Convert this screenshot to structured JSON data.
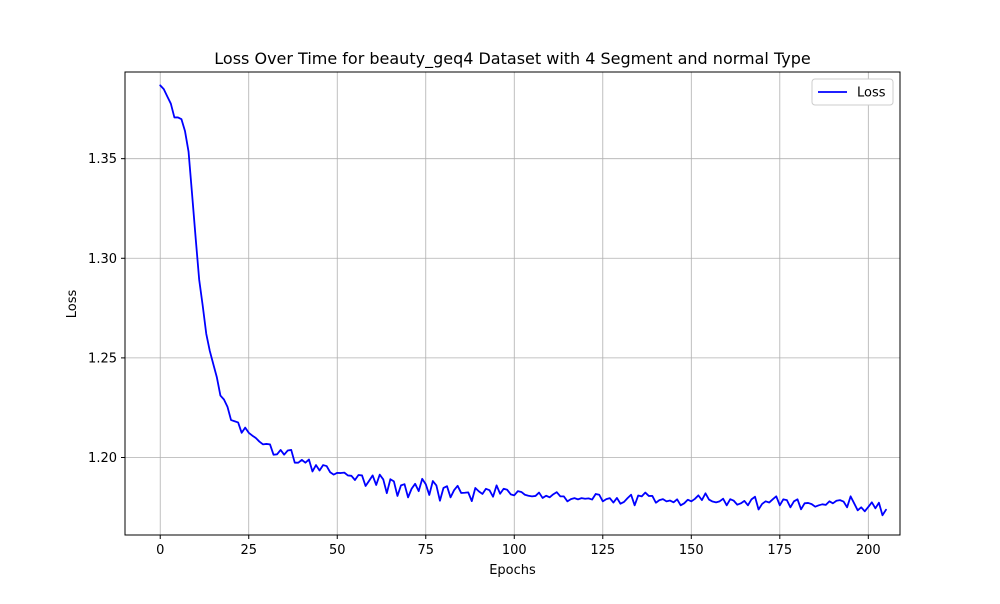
{
  "chart_data": {
    "type": "line",
    "title": "Loss Over Time for beauty_geq4 Dataset with 4 Segment and normal Type",
    "xlabel": "Epochs",
    "ylabel": "Loss",
    "xlim": [
      -9.95,
      208.95
    ],
    "ylim": [
      1.1611,
      1.3935
    ],
    "xticks": [
      0,
      25,
      50,
      75,
      100,
      125,
      150,
      175,
      200
    ],
    "xtick_labels": [
      "0",
      "25",
      "50",
      "75",
      "100",
      "125",
      "150",
      "175",
      "200"
    ],
    "yticks": [
      1.2,
      1.25,
      1.3,
      1.35
    ],
    "ytick_labels": [
      "1.20",
      "1.25",
      "1.30",
      "1.35"
    ],
    "grid": true,
    "legend": {
      "position": "top-right",
      "entries": [
        "Loss"
      ]
    },
    "series": [
      {
        "name": "Loss",
        "color": "#0000ff",
        "values": [
          1.3868,
          1.3849,
          1.3812,
          1.3776,
          1.3707,
          1.3707,
          1.3698,
          1.3638,
          1.3535,
          1.3321,
          1.3103,
          1.2893,
          1.2762,
          1.2621,
          1.2535,
          1.2468,
          1.2402,
          1.2311,
          1.2291,
          1.2254,
          1.2188,
          1.2182,
          1.2176,
          1.2124,
          1.215,
          1.2124,
          1.211,
          1.2098,
          1.208,
          1.2066,
          1.2068,
          1.2066,
          1.2014,
          1.2016,
          1.2038,
          1.2014,
          1.2035,
          1.2038,
          1.1974,
          1.1974,
          1.1988,
          1.1974,
          1.199,
          1.193,
          1.1962,
          1.1935,
          1.1962,
          1.1957,
          1.1926,
          1.1914,
          1.1923,
          1.1922,
          1.1924,
          1.191,
          1.1908,
          1.1887,
          1.1912,
          1.191,
          1.1857,
          1.1883,
          1.191,
          1.1862,
          1.1914,
          1.189,
          1.1821,
          1.1891,
          1.188,
          1.1807,
          1.186,
          1.1866,
          1.18,
          1.1843,
          1.1868,
          1.1831,
          1.1893,
          1.1866,
          1.1812,
          1.1882,
          1.186,
          1.1783,
          1.1847,
          1.1856,
          1.18,
          1.1836,
          1.1858,
          1.1822,
          1.1823,
          1.1825,
          1.1781,
          1.1847,
          1.183,
          1.1817,
          1.1843,
          1.1836,
          1.1803,
          1.186,
          1.1818,
          1.1843,
          1.1838,
          1.1815,
          1.181,
          1.1831,
          1.1827,
          1.1813,
          1.1808,
          1.1805,
          1.1807,
          1.1824,
          1.1797,
          1.1808,
          1.18,
          1.1815,
          1.1826,
          1.1805,
          1.1805,
          1.178,
          1.1791,
          1.1796,
          1.179,
          1.1796,
          1.1793,
          1.1795,
          1.1789,
          1.1817,
          1.1813,
          1.178,
          1.1791,
          1.1796,
          1.1774,
          1.1797,
          1.1768,
          1.1777,
          1.1796,
          1.1813,
          1.176,
          1.1809,
          1.1805,
          1.1824,
          1.1807,
          1.1807,
          1.1773,
          1.1786,
          1.1791,
          1.178,
          1.1784,
          1.1775,
          1.179,
          1.176,
          1.177,
          1.1788,
          1.178,
          1.1792,
          1.181,
          1.1786,
          1.182,
          1.1789,
          1.1779,
          1.1775,
          1.178,
          1.1793,
          1.176,
          1.1791,
          1.1783,
          1.1763,
          1.177,
          1.1782,
          1.176,
          1.179,
          1.1803,
          1.1739,
          1.1767,
          1.178,
          1.1774,
          1.179,
          1.1805,
          1.176,
          1.179,
          1.1786,
          1.175,
          1.178,
          1.179,
          1.174,
          1.177,
          1.1772,
          1.1766,
          1.1753,
          1.176,
          1.1765,
          1.1762,
          1.178,
          1.177,
          1.1783,
          1.1786,
          1.1779,
          1.175,
          1.1805,
          1.177,
          1.1735,
          1.175,
          1.173,
          1.1752,
          1.1775,
          1.1745,
          1.1773,
          1.171,
          1.1738
        ]
      }
    ]
  }
}
